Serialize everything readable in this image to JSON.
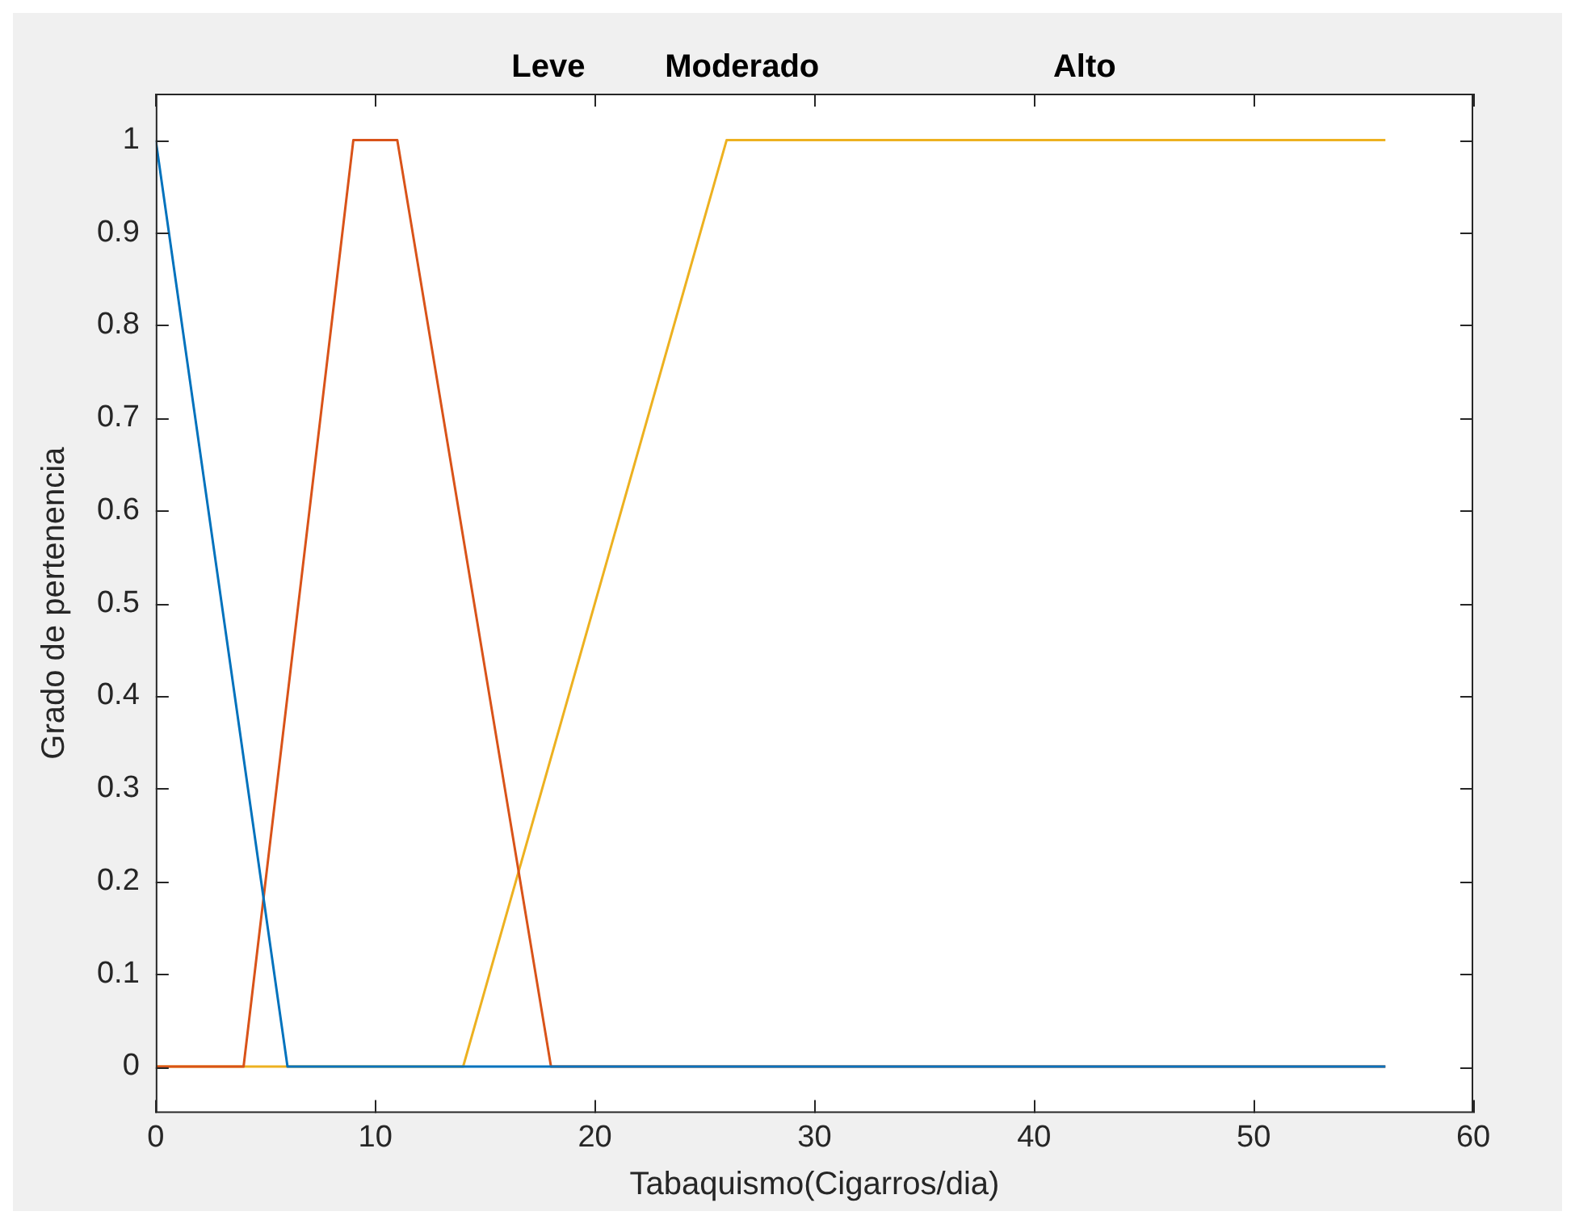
{
  "chart_data": {
    "type": "line",
    "xlabel": "Tabaquismo(Cigarros/dia)",
    "ylabel": "Grado de pertenencia",
    "xlim": [
      0,
      60
    ],
    "xticks": [
      0,
      10,
      20,
      30,
      40,
      50,
      60
    ],
    "ylim": [
      -0.05,
      1.05
    ],
    "yticks": [
      0,
      0.1,
      0.2,
      0.3,
      0.4,
      0.5,
      0.6,
      0.7,
      0.8,
      0.9,
      1
    ],
    "grid": false,
    "legend": false,
    "marker": "none",
    "line_style": "solid",
    "series": [
      {
        "color": "#0072bd",
        "x": [
          0,
          6,
          56
        ],
        "values": [
          1,
          0,
          0
        ]
      },
      {
        "color": "#d95319",
        "x": [
          0,
          4,
          9,
          11,
          18,
          56
        ],
        "values": [
          0,
          0,
          1,
          1,
          0,
          0
        ]
      },
      {
        "color": "#edb120",
        "x": [
          0,
          14,
          26,
          56
        ],
        "values": [
          0,
          0,
          1,
          1
        ]
      }
    ],
    "annotations": [
      "Leve",
      "Moderado",
      "Alto"
    ]
  }
}
